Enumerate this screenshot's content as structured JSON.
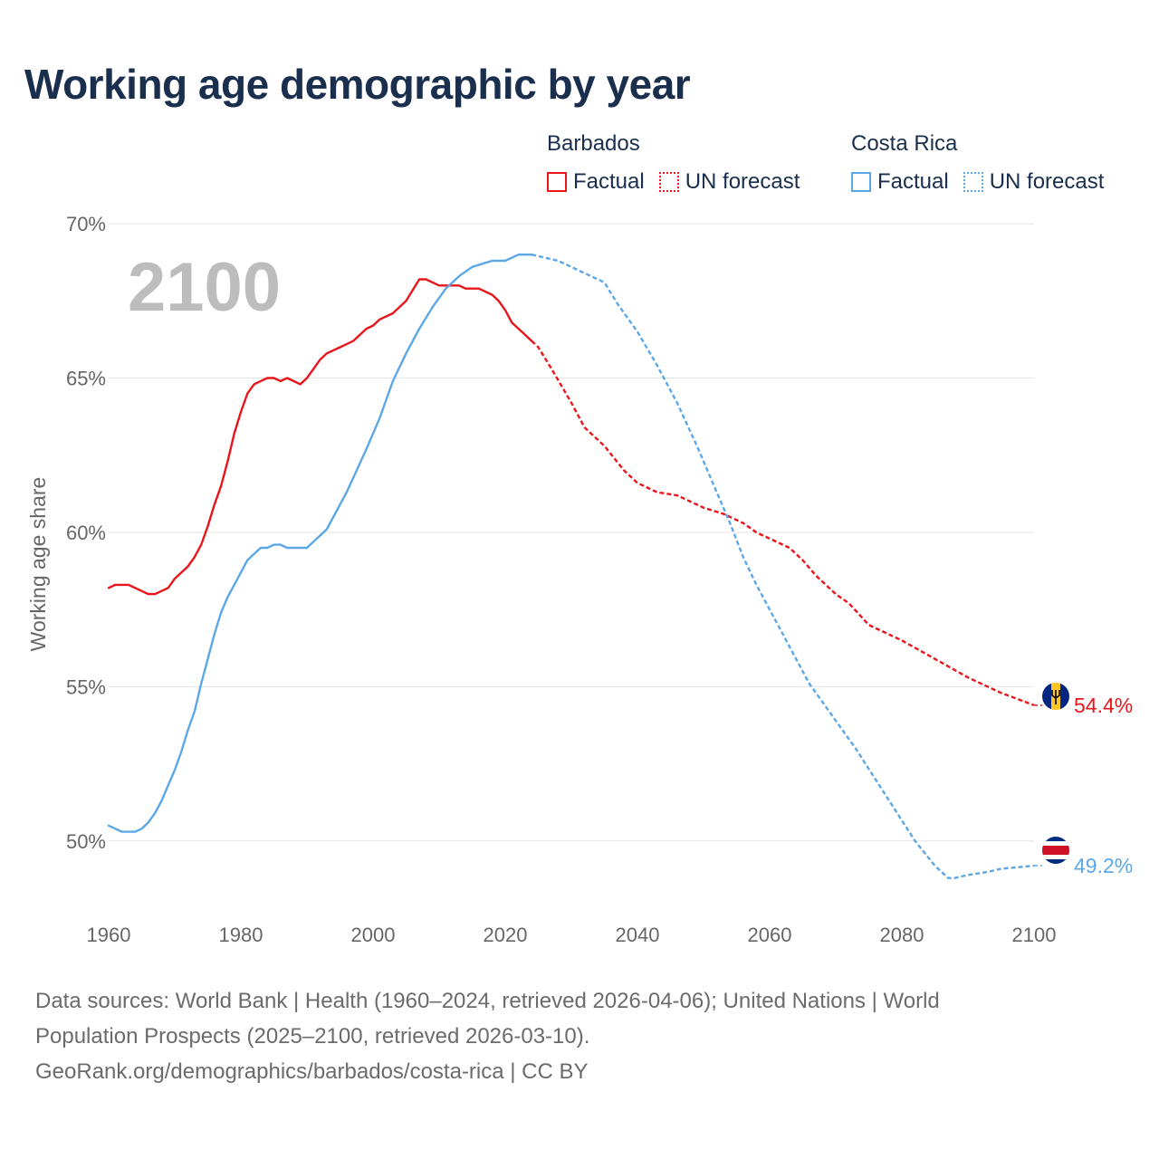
{
  "title": "Working age demographic by year",
  "legend": {
    "groups": [
      {
        "name": "Barbados",
        "color": "#e8161b",
        "factual_label": "Factual",
        "forecast_label": "UN forecast"
      },
      {
        "name": "Costa Rica",
        "color": "#5ca8e6",
        "factual_label": "Factual",
        "forecast_label": "UN forecast"
      }
    ]
  },
  "chart_data": {
    "type": "line",
    "title": "Working age demographic by year",
    "xlabel": "",
    "ylabel": "Working age share",
    "xlim": [
      1960,
      2100
    ],
    "ylim": [
      47.5,
      71.5
    ],
    "x_ticks": [
      1960,
      1980,
      2000,
      2020,
      2040,
      2060,
      2080,
      2100
    ],
    "x_tick_labels": [
      "1960",
      "1980",
      "2000",
      "2020",
      "2040",
      "2060",
      "2080",
      "2100"
    ],
    "y_ticks": [
      50,
      55,
      60,
      65,
      70
    ],
    "y_tick_labels": [
      "50%",
      "55%",
      "60%",
      "65%",
      "70%"
    ],
    "grid": true,
    "year_overlay": "2100",
    "factual_end_year": 2024,
    "series": [
      {
        "name": "Barbados",
        "color": "#e8161b",
        "end_label": "54.4%",
        "x": [
          1960,
          1961,
          1963,
          1965,
          1966,
          1967,
          1968,
          1969,
          1970,
          1972,
          1973,
          1974,
          1975,
          1976,
          1977,
          1978,
          1979,
          1980,
          1981,
          1982,
          1983,
          1984,
          1985,
          1986,
          1987,
          1988,
          1989,
          1990,
          1991,
          1992,
          1993,
          1995,
          1997,
          1999,
          2000,
          2001,
          2003,
          2005,
          2007,
          2008,
          2010,
          2013,
          2014,
          2016,
          2018,
          2019,
          2020,
          2021,
          2023,
          2024,
          2025,
          2027,
          2030,
          2032,
          2035,
          2038,
          2040,
          2043,
          2046,
          2048,
          2050,
          2053,
          2056,
          2058,
          2060,
          2063,
          2065,
          2067,
          2070,
          2072,
          2075,
          2080,
          2085,
          2090,
          2095,
          2100
        ],
        "y": [
          58.2,
          58.3,
          58.3,
          58.1,
          58.0,
          58.0,
          58.1,
          58.2,
          58.5,
          58.9,
          59.2,
          59.6,
          60.2,
          60.9,
          61.5,
          62.3,
          63.2,
          63.9,
          64.5,
          64.8,
          64.9,
          65.0,
          65.0,
          64.9,
          65.0,
          64.9,
          64.8,
          65.0,
          65.3,
          65.6,
          65.8,
          66.0,
          66.2,
          66.6,
          66.7,
          66.9,
          67.1,
          67.5,
          68.2,
          68.2,
          68.0,
          68.0,
          67.9,
          67.9,
          67.7,
          67.5,
          67.2,
          66.8,
          66.4,
          66.2,
          66.0,
          65.3,
          64.2,
          63.4,
          62.8,
          62.0,
          61.6,
          61.3,
          61.2,
          61.0,
          60.8,
          60.6,
          60.3,
          60.0,
          59.8,
          59.5,
          59.1,
          58.6,
          58.0,
          57.7,
          57.0,
          56.5,
          55.9,
          55.3,
          54.8,
          54.4
        ]
      },
      {
        "name": "Costa Rica",
        "color": "#5ca8e6",
        "end_label": "49.2%",
        "x": [
          1960,
          1962,
          1964,
          1965,
          1966,
          1967,
          1968,
          1969,
          1970,
          1971,
          1972,
          1973,
          1974,
          1975,
          1976,
          1977,
          1978,
          1979,
          1980,
          1981,
          1982,
          1983,
          1984,
          1985,
          1986,
          1987,
          1988,
          1990,
          1993,
          1996,
          1999,
          2001,
          2003,
          2005,
          2007,
          2009,
          2011,
          2013,
          2015,
          2018,
          2020,
          2022,
          2024,
          2026,
          2028,
          2030,
          2032,
          2035,
          2037,
          2040,
          2043,
          2046,
          2049,
          2052,
          2054,
          2056,
          2058,
          2060,
          2063,
          2066,
          2068,
          2070,
          2073,
          2076,
          2079,
          2082,
          2085,
          2087,
          2088,
          2090,
          2093,
          2095,
          2100
        ],
        "y": [
          50.5,
          50.3,
          50.3,
          50.4,
          50.6,
          50.9,
          51.3,
          51.8,
          52.3,
          52.9,
          53.6,
          54.2,
          55.1,
          55.9,
          56.7,
          57.4,
          57.9,
          58.3,
          58.7,
          59.1,
          59.3,
          59.5,
          59.5,
          59.6,
          59.6,
          59.5,
          59.5,
          59.5,
          60.1,
          61.3,
          62.7,
          63.7,
          64.9,
          65.8,
          66.6,
          67.3,
          67.9,
          68.3,
          68.6,
          68.8,
          68.8,
          69.0,
          69.0,
          68.9,
          68.8,
          68.6,
          68.4,
          68.1,
          67.4,
          66.5,
          65.4,
          64.2,
          62.8,
          61.3,
          60.3,
          59.2,
          58.3,
          57.5,
          56.3,
          55.1,
          54.5,
          53.9,
          53.0,
          52.0,
          51.0,
          50.0,
          49.2,
          48.8,
          48.8,
          48.9,
          49.0,
          49.1,
          49.2
        ]
      }
    ]
  },
  "source": {
    "line1": "Data sources: World Bank | Health (1960–2024, retrieved 2026-04-06); United Nations | World",
    "line2": "Population Prospects (2025–2100, retrieved 2026-03-10).",
    "line3": "GeoRank.org/demographics/barbados/costa-rica | CC BY"
  }
}
